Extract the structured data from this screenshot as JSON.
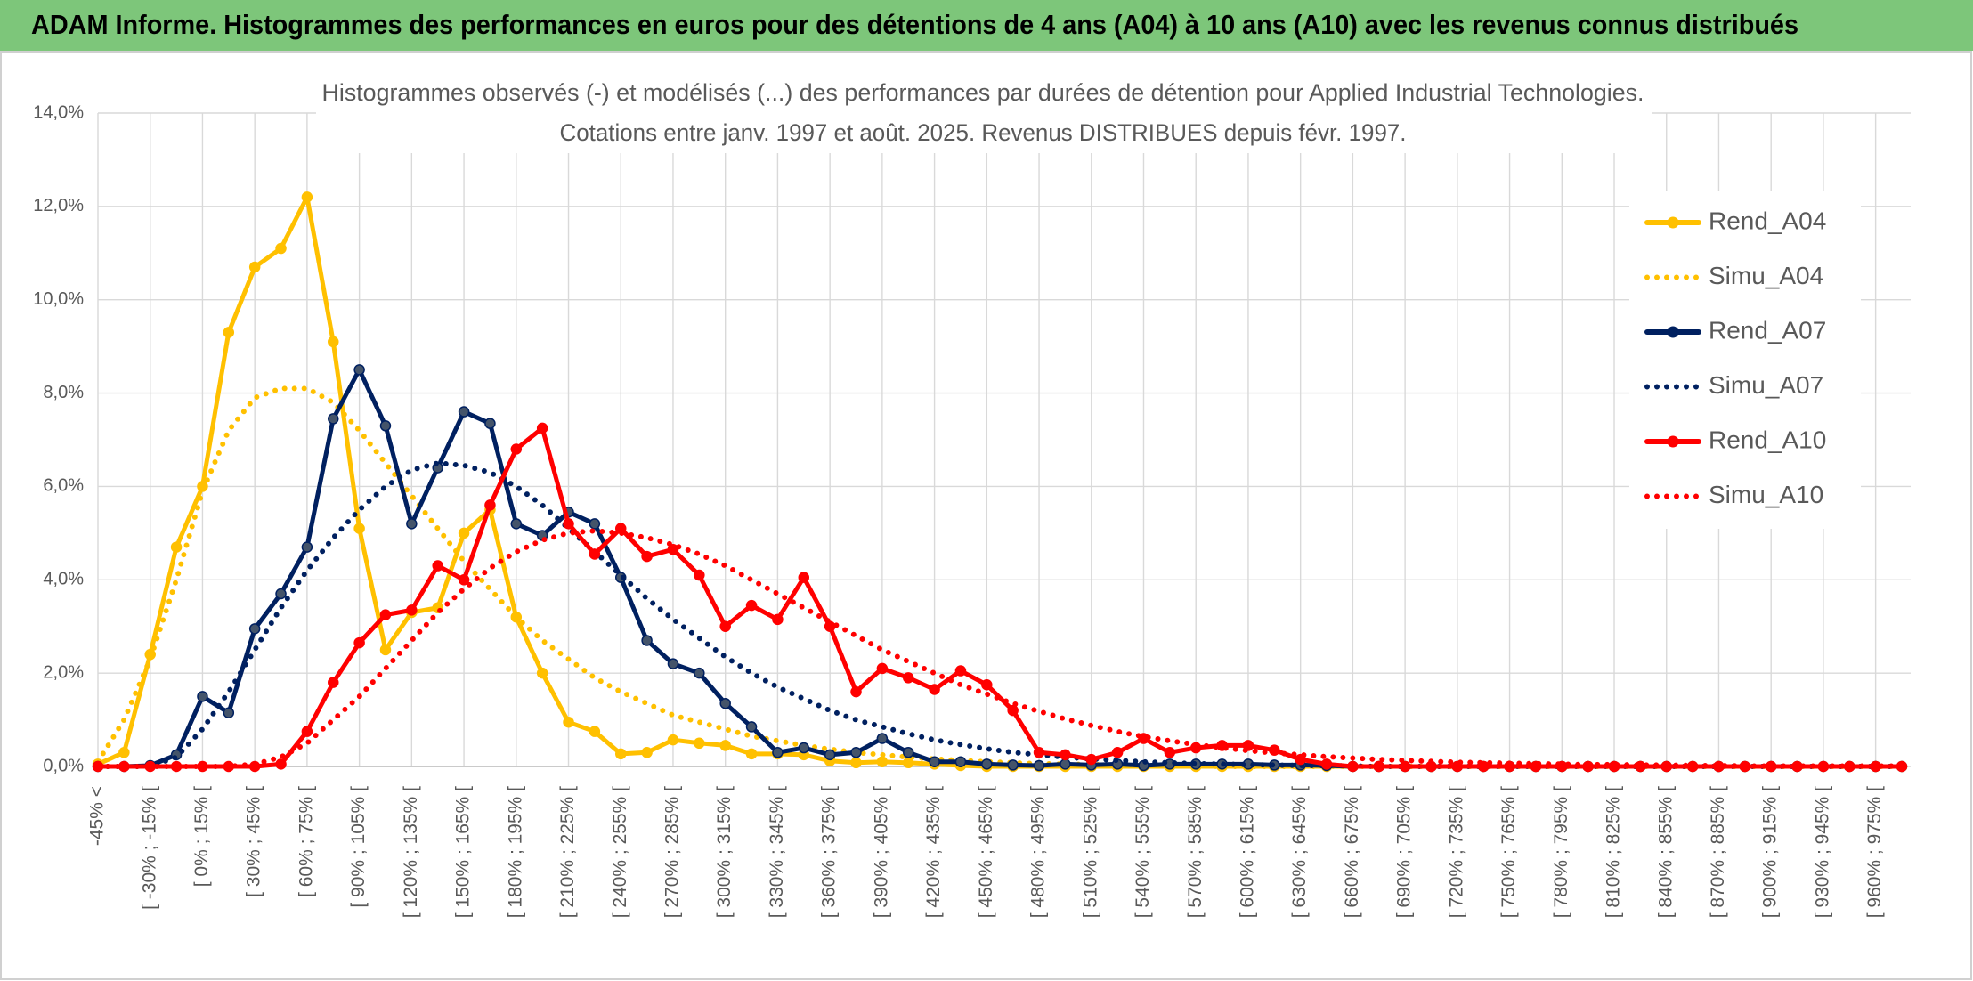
{
  "header": {
    "title": "ADAM Informe. Histogrammes des performances en euros pour des détentions de 4 ans (A04) à 10 ans (A10) avec les revenus connus distribués"
  },
  "chart_data": {
    "type": "line",
    "title": "Histogrammes observés (-) et modélisés (...) des performances par durées de détention pour Applied Industrial Technologies.",
    "subtitle": "Cotations entre janv. 1997 et août. 2025. Revenus DISTRIBUES depuis févr. 1997.",
    "categories": [
      "-45% <",
      null,
      "[ -30% ; -15% [",
      null,
      "[ 0% ; 15% [",
      null,
      "[ 30% ; 45% [",
      null,
      "[ 60% ; 75% [",
      null,
      "[ 90% ; 105% [",
      null,
      "[ 120% ; 135% [",
      null,
      "[ 150% ; 165% [",
      null,
      "[ 180% ; 195% [",
      null,
      "[ 210% ; 225% [",
      null,
      "[ 240% ; 255% [",
      null,
      "[ 270% ; 285% [",
      null,
      "[ 300% ; 315% [",
      null,
      "[ 330% ; 345% [",
      null,
      "[ 360% ; 375% [",
      null,
      "[ 390% ; 405% [",
      null,
      "[ 420% ; 435% [",
      null,
      "[ 450% ; 465% [",
      null,
      "[ 480% ; 495% [",
      null,
      "[ 510% ; 525% [",
      null,
      "[ 540% ; 555% [",
      null,
      "[ 570% ; 585% [",
      null,
      "[ 600% ; 615% [",
      null,
      "[ 630% ; 645% [",
      null,
      "[ 660% ; 675% [",
      null,
      "[ 690% ; 705% [",
      null,
      "[ 720% ; 735% [",
      null,
      "[ 750% ; 765% [",
      null,
      "[ 780% ; 795% [",
      null,
      "[ 810% ; 825% [",
      null,
      "[ 840% ; 855% [",
      null,
      "[ 870% ; 885% [",
      null,
      "[ 900% ; 915% [",
      null,
      "[ 930% ; 945% [",
      null,
      "[ 960% ; 975% [",
      null
    ],
    "series": [
      {
        "name": "Rend_A04",
        "color": "#FFC000",
        "style": "solid",
        "markers": true,
        "values": [
          0.05,
          0.3,
          2.4,
          4.7,
          6.0,
          9.3,
          10.7,
          11.1,
          12.2,
          9.1,
          5.1,
          2.5,
          3.3,
          3.4,
          5.0,
          5.5,
          3.2,
          2.0,
          0.95,
          0.75,
          0.27,
          0.3,
          0.57,
          0.5,
          0.45,
          0.27,
          0.27,
          0.25,
          0.12,
          0.08,
          0.1,
          0.08,
          0.05,
          0.02,
          0,
          0,
          0,
          0,
          0,
          0,
          0,
          0,
          0,
          0,
          0,
          0,
          0,
          0,
          0,
          0,
          0,
          0,
          0,
          0,
          0,
          0,
          0,
          0,
          0,
          0,
          0,
          0,
          0,
          0,
          0,
          0,
          0,
          0,
          0,
          0
        ]
      },
      {
        "name": "Simu_A04",
        "color": "#FFC000",
        "style": "dotted",
        "markers": false,
        "values": [
          0.1,
          1.0,
          2.3,
          4.0,
          5.9,
          7.2,
          7.9,
          8.1,
          8.1,
          7.8,
          7.2,
          6.5,
          5.8,
          5.1,
          4.4,
          3.8,
          3.2,
          2.7,
          2.3,
          1.9,
          1.6,
          1.35,
          1.1,
          0.95,
          0.8,
          0.65,
          0.55,
          0.45,
          0.37,
          0.3,
          0.25,
          0.2,
          0.16,
          0.13,
          0.1,
          0.08,
          0.06,
          0.05,
          0.04,
          0.03,
          0.02,
          0.02,
          0.01,
          0,
          0,
          0,
          0,
          0,
          0,
          0,
          0,
          0,
          0,
          0,
          0,
          0,
          0,
          0,
          0,
          0,
          0,
          0,
          0,
          0,
          0,
          0,
          0,
          0,
          0,
          0
        ]
      },
      {
        "name": "Rend_A07",
        "color": "#002060",
        "style": "solid",
        "markers": true,
        "values": [
          0,
          0,
          0.02,
          0.25,
          1.5,
          1.15,
          2.95,
          3.7,
          4.7,
          7.45,
          8.5,
          7.3,
          5.2,
          6.4,
          7.6,
          7.35,
          5.2,
          4.95,
          5.45,
          5.2,
          4.05,
          2.7,
          2.2,
          2.0,
          1.35,
          0.85,
          0.3,
          0.4,
          0.25,
          0.3,
          0.6,
          0.3,
          0.1,
          0.1,
          0.05,
          0.03,
          0.02,
          0.05,
          0.03,
          0.05,
          0.02,
          0.05,
          0.05,
          0.05,
          0.05,
          0.03,
          0.03,
          0.02,
          0,
          0,
          0,
          0,
          0,
          0,
          0,
          0,
          0,
          0,
          0,
          0,
          0,
          0,
          0,
          0,
          0,
          0,
          0,
          0,
          0,
          0
        ]
      },
      {
        "name": "Simu_A07",
        "color": "#002060",
        "style": "dotted",
        "markers": false,
        "values": [
          0,
          0,
          0,
          0.2,
          0.8,
          1.6,
          2.5,
          3.4,
          4.2,
          4.9,
          5.5,
          6.0,
          6.35,
          6.5,
          6.45,
          6.3,
          6.0,
          5.6,
          5.1,
          4.6,
          4.1,
          3.6,
          3.15,
          2.75,
          2.35,
          2.0,
          1.7,
          1.45,
          1.2,
          1.0,
          0.85,
          0.7,
          0.57,
          0.47,
          0.38,
          0.3,
          0.25,
          0.2,
          0.16,
          0.13,
          0.1,
          0.08,
          0.06,
          0.05,
          0.04,
          0.03,
          0.02,
          0.02,
          0.01,
          0,
          0,
          0,
          0,
          0,
          0,
          0,
          0,
          0,
          0,
          0,
          0,
          0,
          0,
          0,
          0,
          0,
          0,
          0,
          0,
          0
        ]
      },
      {
        "name": "Rend_A10",
        "color": "#FF0000",
        "style": "solid",
        "markers": true,
        "values": [
          0,
          0,
          0,
          0,
          0,
          0,
          0,
          0.05,
          0.75,
          1.8,
          2.65,
          3.25,
          3.35,
          4.3,
          4.0,
          5.6,
          6.8,
          7.25,
          5.2,
          4.55,
          5.1,
          4.5,
          4.65,
          4.1,
          3.0,
          3.45,
          3.15,
          4.05,
          3.0,
          1.6,
          2.1,
          1.9,
          1.65,
          2.05,
          1.75,
          1.2,
          0.3,
          0.25,
          0.15,
          0.3,
          0.6,
          0.3,
          0.4,
          0.45,
          0.45,
          0.35,
          0.15,
          0.05,
          0,
          0,
          0,
          0,
          0,
          0,
          0,
          0,
          0,
          0,
          0,
          0,
          0,
          0,
          0,
          0,
          0,
          0,
          0,
          0,
          0,
          0
        ]
      },
      {
        "name": "Simu_A10",
        "color": "#FF0000",
        "style": "dotted",
        "markers": false,
        "values": [
          0,
          0,
          0,
          0,
          0,
          0,
          0.05,
          0.2,
          0.5,
          1.0,
          1.5,
          2.1,
          2.7,
          3.3,
          3.8,
          4.25,
          4.6,
          4.85,
          5.0,
          5.05,
          5.0,
          4.9,
          4.75,
          4.55,
          4.3,
          4.0,
          3.7,
          3.4,
          3.1,
          2.8,
          2.5,
          2.25,
          2.0,
          1.75,
          1.55,
          1.35,
          1.18,
          1.02,
          0.88,
          0.75,
          0.64,
          0.55,
          0.47,
          0.4,
          0.34,
          0.29,
          0.25,
          0.21,
          0.18,
          0.15,
          0.13,
          0.11,
          0.09,
          0.08,
          0.07,
          0.06,
          0.05,
          0.04,
          0.04,
          0.03,
          0.03,
          0.02,
          0.02,
          0.01,
          0.01,
          0.01,
          0.01,
          0.01,
          0.01,
          0.01
        ]
      }
    ],
    "ylim": [
      0,
      14
    ],
    "yticks": [
      {
        "value": 0,
        "label": "0,0%"
      },
      {
        "value": 2,
        "label": "2,0%"
      },
      {
        "value": 4,
        "label": "4,0%"
      },
      {
        "value": 6,
        "label": "6,0%"
      },
      {
        "value": 8,
        "label": "8,0%"
      },
      {
        "value": 10,
        "label": "10,0%"
      },
      {
        "value": 12,
        "label": "12,0%"
      },
      {
        "value": 14,
        "label": "14,0%"
      }
    ],
    "grid": true,
    "legend": "right"
  }
}
